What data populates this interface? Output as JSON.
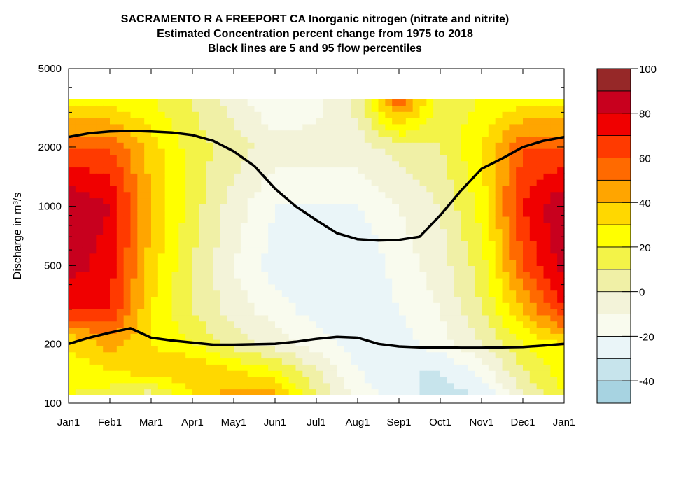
{
  "chart_data": {
    "type": "heatmap",
    "title": [
      "SACRAMENTO R A FREEPORT CA  Inorganic nitrogen (nitrate and nitrite)",
      "Estimated Concentration percent change from 1975 to 2018",
      "Black lines are 5 and 95 flow percentiles"
    ],
    "ylabel": "Discharge in m³/s",
    "xlabel": "",
    "y_scale": "log",
    "ylim": [
      100,
      5000
    ],
    "xlim": [
      0,
      12
    ],
    "x_ticks": [
      0,
      1,
      2,
      3,
      4,
      5,
      6,
      7,
      8,
      9,
      10,
      11,
      12
    ],
    "x_tick_labels": [
      "Jan1",
      "Feb1",
      "Mar1",
      "Apr1",
      "May1",
      "Jun1",
      "Jul1",
      "Aug1",
      "Sep1",
      "Oct1",
      "Nov1",
      "Dec1",
      "Jan1"
    ],
    "y_ticks": [
      100,
      200,
      500,
      1000,
      2000,
      5000
    ],
    "y_tick_labels": [
      "100",
      "200",
      "500",
      "1000",
      "2000",
      "5000"
    ],
    "grid": false,
    "surface_q_range": [
      110,
      3500
    ],
    "x": [
      0,
      1,
      2,
      3,
      4,
      5,
      6,
      7,
      8,
      9,
      10,
      11,
      12
    ],
    "y": [
      110,
      150,
      200,
      300,
      500,
      1000,
      2000,
      3500
    ],
    "z": [
      [
        20,
        15,
        5,
        30,
        45,
        45,
        10,
        -15,
        -25,
        -35,
        -30,
        0,
        20
      ],
      [
        25,
        30,
        40,
        40,
        30,
        20,
        0,
        -20,
        -30,
        -30,
        -15,
        10,
        25
      ],
      [
        30,
        45,
        30,
        20,
        5,
        -5,
        -15,
        -25,
        -25,
        -15,
        0,
        20,
        30
      ],
      [
        70,
        70,
        30,
        10,
        -5,
        -15,
        -25,
        -30,
        -20,
        -10,
        10,
        40,
        70
      ],
      [
        85,
        75,
        35,
        10,
        -10,
        -25,
        -30,
        -30,
        -15,
        -5,
        15,
        60,
        85
      ],
      [
        90,
        80,
        40,
        15,
        -5,
        -20,
        -20,
        -20,
        -10,
        0,
        25,
        70,
        90
      ],
      [
        60,
        60,
        35,
        15,
        5,
        -5,
        -5,
        -5,
        5,
        10,
        30,
        60,
        60
      ],
      [
        25,
        25,
        20,
        10,
        -5,
        -20,
        -15,
        5,
        60,
        15,
        20,
        25,
        25
      ]
    ],
    "series": [
      {
        "x": [
          0,
          0.5,
          1,
          1.5,
          2,
          2.5,
          3,
          3.5,
          4,
          4.5,
          5,
          5.5,
          6,
          6.5,
          7,
          7.5,
          8,
          8.5,
          9,
          9.5,
          10,
          10.5,
          11,
          11.5,
          12
        ],
        "values": [
          2250,
          2350,
          2400,
          2420,
          2400,
          2370,
          2300,
          2150,
          1900,
          1600,
          1230,
          1000,
          850,
          730,
          680,
          670,
          675,
          700,
          900,
          1200,
          1550,
          1750,
          2000,
          2150,
          2250
        ]
      },
      {
        "x": [
          0,
          0.5,
          1,
          1.5,
          2,
          2.5,
          3,
          3.5,
          4,
          4.5,
          5,
          5.5,
          6,
          6.5,
          7,
          7.5,
          8,
          8.5,
          9,
          9.5,
          10,
          10.5,
          11,
          11.5,
          12
        ],
        "values": [
          200,
          215,
          228,
          240,
          215,
          208,
          203,
          198,
          198,
          199,
          200,
          205,
          212,
          217,
          215,
          200,
          194,
          192,
          192,
          191,
          191,
          192,
          193,
          196,
          200
        ]
      }
    ],
    "colorbar": {
      "min": -50,
      "max": 100,
      "step": 10,
      "ticks": [
        100,
        80,
        60,
        40,
        20,
        0,
        -20,
        -40
      ],
      "colors": [
        "#a7d3e1",
        "#c7e4ec",
        "#eaf5f8",
        "#f9fbee",
        "#f3f3d9",
        "#f0f0a6",
        "#f3f348",
        "#ffff00",
        "#ffd800",
        "#ffa500",
        "#ff6a00",
        "#ff3a00",
        "#f00000",
        "#c8001e",
        "#962828"
      ]
    }
  }
}
